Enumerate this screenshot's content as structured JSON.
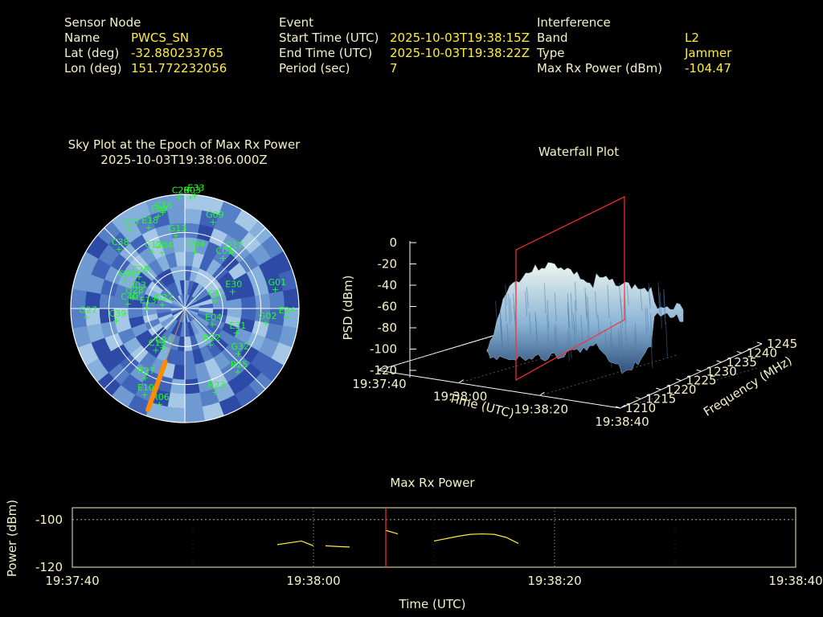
{
  "info": {
    "sensor": {
      "heading": "Sensor Node",
      "rows": [
        {
          "label": "Name",
          "value": "PWCS_SN"
        },
        {
          "label": "Lat (deg)",
          "value": "-32.880233765"
        },
        {
          "label": "Lon (deg)",
          "value": "151.772232056"
        }
      ]
    },
    "event": {
      "heading": "Event",
      "rows": [
        {
          "label": "Start Time (UTC)",
          "value": "2025-10-03T19:38:15Z"
        },
        {
          "label": "End Time (UTC)",
          "value": "2025-10-03T19:38:22Z"
        },
        {
          "label": "Period (sec)",
          "value": "7"
        }
      ]
    },
    "interference": {
      "heading": "Interference",
      "rows": [
        {
          "label": "Band",
          "value": "L2"
        },
        {
          "label": "Type",
          "value": "Jammer"
        },
        {
          "label": "Max Rx Power (dBm)",
          "value": "-104.47"
        }
      ]
    }
  },
  "colors": {
    "label_text": "#f5f0c8",
    "value_text": "#ffeb3b",
    "satellite_text": "#22ff22",
    "marker": "#ff3030",
    "series_line": "#ffeb3b",
    "jammer_direction": "#ff8c00"
  },
  "chart_data": [
    {
      "type": "sky-plot",
      "title": "Sky Plot at the Epoch of Max Rx Power",
      "subtitle": "2025-10-03T19:38:06.000Z",
      "satellites": [
        {
          "id": "C26",
          "az": -3,
          "el": 88
        },
        {
          "id": "R03",
          "az": 3,
          "el": 88
        },
        {
          "id": "E33",
          "az": 5,
          "el": 90
        },
        {
          "id": "C16",
          "az": -13,
          "el": 78
        },
        {
          "id": "E09",
          "az": -16,
          "el": 76
        },
        {
          "id": "C07",
          "az": -35,
          "el": 76
        },
        {
          "id": "E18",
          "az": -24,
          "el": 70
        },
        {
          "id": "G09",
          "az": 18,
          "el": 72
        },
        {
          "id": "C38",
          "az": -48,
          "el": 70
        },
        {
          "id": "G13",
          "az": -7,
          "el": 58
        },
        {
          "id": "C12",
          "az": -30,
          "el": 52
        },
        {
          "id": "G04",
          "az": -22,
          "el": 48
        },
        {
          "id": "C04",
          "az": 10,
          "el": 46
        },
        {
          "id": "G17",
          "az": 40,
          "el": 58
        },
        {
          "id": "C01",
          "az": 37,
          "el": 50
        },
        {
          "id": "G08",
          "az": -65,
          "el": 52
        },
        {
          "id": "C29",
          "az": -55,
          "el": 44
        },
        {
          "id": "J03",
          "az": -70,
          "el": 38
        },
        {
          "id": "G28",
          "az": -78,
          "el": 42
        },
        {
          "id": "C40",
          "az": -85,
          "el": 45
        },
        {
          "id": "E13",
          "az": -88,
          "el": 30
        },
        {
          "id": "G01",
          "az": 78,
          "el": 73
        },
        {
          "id": "E30",
          "az": 70,
          "el": 40
        },
        {
          "id": "C11",
          "az": 75,
          "el": 25
        },
        {
          "id": "G22",
          "az": -80,
          "el": 18
        },
        {
          "id": "G27",
          "az": -95,
          "el": 78
        },
        {
          "id": "C39",
          "az": -100,
          "el": 55
        },
        {
          "id": "E24",
          "az": 95,
          "el": 80
        },
        {
          "id": "G02",
          "az": 100,
          "el": 65
        },
        {
          "id": "E31",
          "az": 115,
          "el": 45
        },
        {
          "id": "E04",
          "az": 120,
          "el": 25
        },
        {
          "id": "G32",
          "az": 130,
          "el": 55
        },
        {
          "id": "R22",
          "az": 145,
          "el": 35
        },
        {
          "id": "C21",
          "az": -150,
          "el": 35
        },
        {
          "id": "C13",
          "az": -145,
          "el": 40
        },
        {
          "id": "R27",
          "az": -150,
          "el": 63
        },
        {
          "id": "E10",
          "az": -155,
          "el": 75
        },
        {
          "id": "R06",
          "az": -165,
          "el": 78
        },
        {
          "id": "R23",
          "az": 160,
          "el": 70
        },
        {
          "id": "R25",
          "az": 140,
          "el": 65
        }
      ],
      "jammer_direction": {
        "az": -160,
        "el_from": 45,
        "el_to": 85
      }
    },
    {
      "type": "surface",
      "title": "Waterfall Plot",
      "zlabel": "PSD (dBm)",
      "xlabel": "Time (UTC)",
      "ylabel": "Frequency (MHz)",
      "zticks": [
        "0",
        "-20",
        "-40",
        "-60",
        "-80",
        "-100",
        "-120"
      ],
      "xticks": [
        "19:37:40",
        "19:38:00",
        "19:38:20",
        "19:38:40"
      ],
      "yticks": [
        "1210",
        "1215",
        "1220",
        "1225",
        "1230",
        "1235",
        "1240",
        "1245"
      ],
      "zlim": [
        -120,
        0
      ],
      "xlim": [
        "19:37:40",
        "19:38:40"
      ],
      "ylim": [
        1210,
        1245
      ],
      "surface_peak_dbm": -20,
      "marker_time": "19:38:06"
    },
    {
      "type": "line",
      "title": "Max Rx Power",
      "xlabel": "Time (UTC)",
      "ylabel": "Power (dBm)",
      "xticks": [
        "19:37:40",
        "19:38:00",
        "19:38:20",
        "19:38:40"
      ],
      "yticks": [
        "-100",
        "-120"
      ],
      "xlim": [
        "19:37:40",
        "19:38:40"
      ],
      "ylim": [
        -120,
        -95
      ],
      "grid": true,
      "marker_time": "19:38:06",
      "segments": [
        {
          "x": [
            "19:37:57",
            "19:37:59",
            "19:38:00"
          ],
          "y": [
            -110.5,
            -109,
            -111
          ]
        },
        {
          "x": [
            "19:38:01",
            "19:38:02",
            "19:38:03"
          ],
          "y": [
            -111,
            -111.3,
            -111.5
          ]
        },
        {
          "x": [
            "19:38:06",
            "19:38:07"
          ],
          "y": [
            -104.5,
            -106
          ]
        },
        {
          "x": [
            "19:38:10",
            "19:38:12",
            "19:38:13",
            "19:38:14",
            "19:38:15",
            "19:38:16",
            "19:38:17"
          ],
          "y": [
            -109,
            -107,
            -106.2,
            -106,
            -106.2,
            -107.5,
            -110
          ]
        }
      ]
    }
  ]
}
